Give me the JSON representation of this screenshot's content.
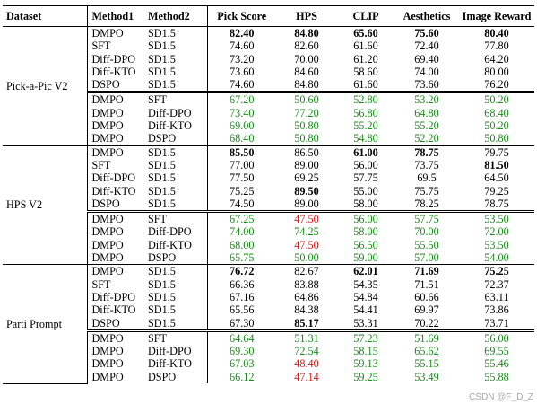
{
  "headers": [
    "Dataset",
    "Method1",
    "Method2",
    "Pick Score",
    "HPS",
    "CLIP",
    "Aesthetics",
    "Image Reward"
  ],
  "groups": [
    {
      "dataset": "Pick-a-Pic V2",
      "rows": [
        {
          "m1": "DMPO",
          "m2": "SD1.5",
          "v": [
            "82.40",
            "84.80",
            "65.60",
            "75.60",
            "80.40"
          ],
          "s": [
            "b",
            "b",
            "b",
            "b",
            "b"
          ]
        },
        {
          "m1": "SFT",
          "m2": "SD1.5",
          "v": [
            "74.60",
            "82.60",
            "61.60",
            "72.40",
            "77.80"
          ],
          "s": [
            "",
            "",
            "",
            "",
            ""
          ]
        },
        {
          "m1": "Diff-DPO",
          "m2": "SD1.5",
          "v": [
            "73.20",
            "70.00",
            "61.20",
            "69.40",
            "64.20"
          ],
          "s": [
            "",
            "",
            "",
            "",
            ""
          ]
        },
        {
          "m1": "Diff-KTO",
          "m2": "SD1.5",
          "v": [
            "73.60",
            "84.60",
            "58.60",
            "74.00",
            "80.00"
          ],
          "s": [
            "",
            "",
            "",
            "",
            ""
          ]
        },
        {
          "m1": "DSPO",
          "m2": "SD1.5",
          "v": [
            "74.60",
            "84.80",
            "61.60",
            "73.60",
            "76.20"
          ],
          "s": [
            "",
            "",
            "",
            "",
            ""
          ]
        },
        {
          "m1": "DMPO",
          "m2": "SFT",
          "v": [
            "67.20",
            "50.60",
            "52.80",
            "53.20",
            "50.20"
          ],
          "s": [
            "g",
            "g",
            "g",
            "g",
            "g"
          ]
        },
        {
          "m1": "DMPO",
          "m2": "Diff-DPO",
          "v": [
            "73.40",
            "77.20",
            "56.80",
            "64.80",
            "68.40"
          ],
          "s": [
            "g",
            "g",
            "g",
            "g",
            "g"
          ]
        },
        {
          "m1": "DMPO",
          "m2": "Diff-KTO",
          "v": [
            "69.00",
            "50.80",
            "55.20",
            "55.20",
            "50.20"
          ],
          "s": [
            "g",
            "g",
            "g",
            "g",
            "g"
          ]
        },
        {
          "m1": "DMPO",
          "m2": "DSPO",
          "v": [
            "68.40",
            "50.80",
            "54.80",
            "52.20",
            "50.80"
          ],
          "s": [
            "g",
            "g",
            "g",
            "g",
            "g"
          ]
        }
      ]
    },
    {
      "dataset": "HPS V2",
      "rows": [
        {
          "m1": "DMPO",
          "m2": "SD1.5",
          "v": [
            "85.50",
            "86.50",
            "61.00",
            "78.75",
            "79.75"
          ],
          "s": [
            "b",
            "",
            "b",
            "b",
            ""
          ]
        },
        {
          "m1": "SFT",
          "m2": "SD1.5",
          "v": [
            "77.00",
            "89.00",
            "56.00",
            "73.75",
            "81.50"
          ],
          "s": [
            "",
            "",
            "",
            "",
            "b"
          ]
        },
        {
          "m1": "Diff-DPO",
          "m2": "SD1.5",
          "v": [
            "77.50",
            "69.25",
            "57.75",
            "69.5",
            "64.50"
          ],
          "s": [
            "",
            "",
            "",
            "",
            ""
          ]
        },
        {
          "m1": "Diff-KTO",
          "m2": "SD1.5",
          "v": [
            "75.25",
            "89.50",
            "55.00",
            "75.75",
            "79.25"
          ],
          "s": [
            "",
            "b",
            "",
            "",
            ""
          ]
        },
        {
          "m1": "DSPO",
          "m2": "SD1.5",
          "v": [
            "74.50",
            "89.00",
            "58.00",
            "78.25",
            "78.75"
          ],
          "s": [
            "",
            "",
            "",
            "",
            ""
          ]
        },
        {
          "m1": "DMPO",
          "m2": "SFT",
          "v": [
            "67.25",
            "47.50",
            "56.00",
            "57.75",
            "53.50"
          ],
          "s": [
            "g",
            "r",
            "g",
            "g",
            "g"
          ]
        },
        {
          "m1": "DMPO",
          "m2": "Diff-DPO",
          "v": [
            "74.00",
            "74.25",
            "58.00",
            "70.00",
            "72.00"
          ],
          "s": [
            "g",
            "g",
            "g",
            "g",
            "g"
          ]
        },
        {
          "m1": "DMPO",
          "m2": "Diff-KTO",
          "v": [
            "68.00",
            "47.50",
            "56.50",
            "55.50",
            "53.50"
          ],
          "s": [
            "g",
            "r",
            "g",
            "g",
            "g"
          ]
        },
        {
          "m1": "DMPO",
          "m2": "DSPO",
          "v": [
            "65.75",
            "50.00",
            "59.00",
            "57.00",
            "54.00"
          ],
          "s": [
            "g",
            "g",
            "g",
            "g",
            "g"
          ]
        }
      ]
    },
    {
      "dataset": "Parti Prompt",
      "rows": [
        {
          "m1": "DMPO",
          "m2": "SD1.5",
          "v": [
            "76.72",
            "82.67",
            "62.01",
            "71.69",
            "75.25"
          ],
          "s": [
            "b",
            "",
            "b",
            "b",
            "b"
          ]
        },
        {
          "m1": "SFT",
          "m2": "SD1.5",
          "v": [
            "66.36",
            "83.88",
            "54.35",
            "71.51",
            "72.37"
          ],
          "s": [
            "",
            "",
            "",
            "",
            ""
          ]
        },
        {
          "m1": "Diff-DPO",
          "m2": "SD1.5",
          "v": [
            "67.16",
            "64.86",
            "54.84",
            "60.66",
            "63.11"
          ],
          "s": [
            "",
            "",
            "",
            "",
            ""
          ]
        },
        {
          "m1": "Diff-KTO",
          "m2": "SD1.5",
          "v": [
            "65.56",
            "84.38",
            "54.41",
            "69.97",
            "73.86"
          ],
          "s": [
            "",
            "",
            "",
            "",
            ""
          ]
        },
        {
          "m1": "DSPO",
          "m2": "SD1.5",
          "v": [
            "67.30",
            "85.17",
            "53.31",
            "70.22",
            "73.71"
          ],
          "s": [
            "",
            "b",
            "",
            "",
            ""
          ]
        },
        {
          "m1": "DMPO",
          "m2": "SFT",
          "v": [
            "64.64",
            "51.31",
            "57.23",
            "51.69",
            "56.00"
          ],
          "s": [
            "g",
            "g",
            "g",
            "g",
            "g"
          ]
        },
        {
          "m1": "DMPO",
          "m2": "Diff-DPO",
          "v": [
            "69.30",
            "72.54",
            "58.15",
            "65.62",
            "69.55"
          ],
          "s": [
            "g",
            "g",
            "g",
            "g",
            "g"
          ]
        },
        {
          "m1": "DMPO",
          "m2": "Diff-KTO",
          "v": [
            "67.03",
            "48.40",
            "59.13",
            "55.15",
            "55.46"
          ],
          "s": [
            "g",
            "r",
            "g",
            "g",
            "g"
          ]
        },
        {
          "m1": "DMPO",
          "m2": "DSPO",
          "v": [
            "66.12",
            "47.14",
            "59.25",
            "53.49",
            "55.88"
          ],
          "s": [
            "g",
            "r",
            "g",
            "g",
            "g"
          ]
        }
      ]
    }
  ],
  "colors": {
    "better": "#1a8a1a",
    "worse": "#d11b1b"
  },
  "watermark": "CSDN @F_D_Z"
}
